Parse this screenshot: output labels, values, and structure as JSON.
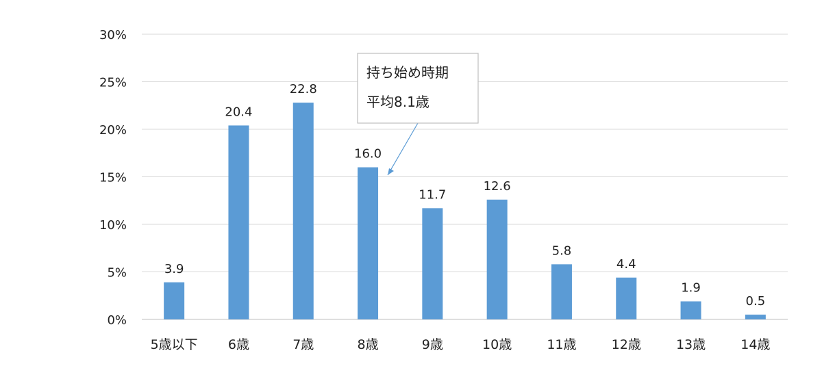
{
  "chart_data": {
    "type": "bar",
    "categories": [
      "5歳以下",
      "6歳",
      "7歳",
      "8歳",
      "9歳",
      "10歳",
      "11歳",
      "12歳",
      "13歳",
      "14歳"
    ],
    "values": [
      3.9,
      20.4,
      22.8,
      16.0,
      11.7,
      12.6,
      5.8,
      4.4,
      1.9,
      0.5
    ],
    "data_labels": [
      "3.9",
      "20.4",
      "22.8",
      "16.0",
      "11.7",
      "12.6",
      "5.8",
      "4.4",
      "1.9",
      "0.5"
    ],
    "y_ticks": [
      "0%",
      "5%",
      "10%",
      "15%",
      "20%",
      "25%",
      "30%"
    ],
    "ylim": [
      0,
      30
    ],
    "grid": true,
    "legend": "none",
    "bar_color": "#5b9bd5",
    "annotation": {
      "lines": [
        "持ち始め時期",
        "平均8.1歳"
      ],
      "points_to_category": "8歳"
    }
  }
}
